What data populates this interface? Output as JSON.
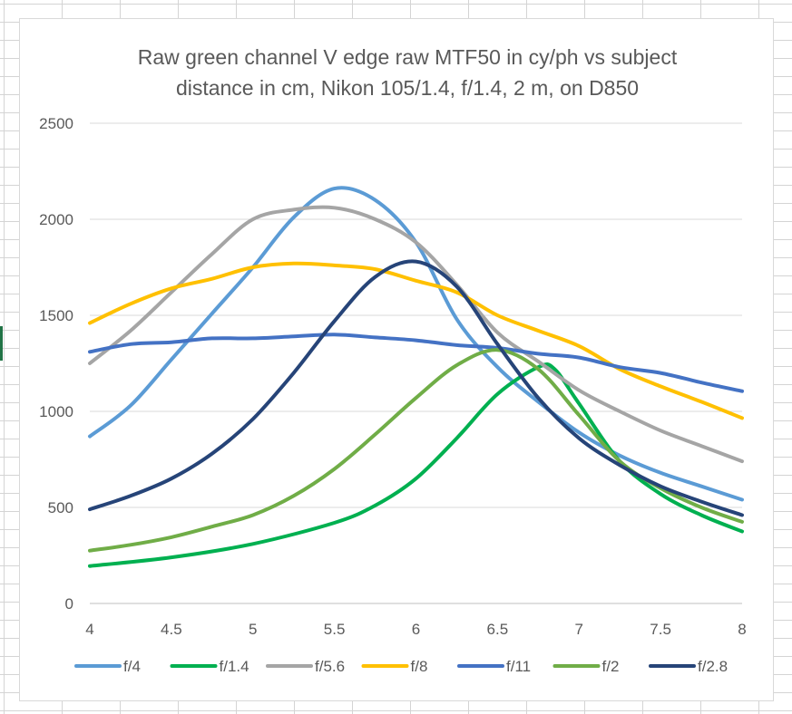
{
  "chart_data": {
    "type": "line",
    "title_lines": [
      "Raw green channel V edge raw MTF50 in cy/ph vs subject",
      "distance in cm, Nikon 105/1.4, f/1.4, 2 m, on D850"
    ],
    "xlabel": "",
    "ylabel": "",
    "xlim": [
      4,
      8
    ],
    "ylim": [
      0,
      2500
    ],
    "x_ticks": [
      "4",
      "4.5",
      "5",
      "5.5",
      "6",
      "6.5",
      "7",
      "7.5",
      "8"
    ],
    "y_ticks": [
      "0",
      "500",
      "1000",
      "1500",
      "2000",
      "2500"
    ],
    "grid": true,
    "legend_position": "bottom",
    "series": [
      {
        "name": "f/4",
        "color": "#5b9bd5",
        "points": [
          [
            4,
            870
          ],
          [
            4.25,
            1030
          ],
          [
            4.5,
            1270
          ],
          [
            4.75,
            1510
          ],
          [
            5,
            1750
          ],
          [
            5.25,
            2010
          ],
          [
            5.5,
            2160
          ],
          [
            5.75,
            2100
          ],
          [
            6,
            1880
          ],
          [
            6.25,
            1480
          ],
          [
            6.5,
            1230
          ],
          [
            6.75,
            1050
          ],
          [
            7,
            890
          ],
          [
            7.25,
            770
          ],
          [
            7.5,
            680
          ],
          [
            7.75,
            610
          ],
          [
            8,
            540
          ]
        ]
      },
      {
        "name": "f/1.4",
        "color": "#00b050",
        "points": [
          [
            4,
            195
          ],
          [
            4.5,
            240
          ],
          [
            5,
            310
          ],
          [
            5.5,
            420
          ],
          [
            5.75,
            510
          ],
          [
            6,
            650
          ],
          [
            6.25,
            860
          ],
          [
            6.5,
            1090
          ],
          [
            6.75,
            1230
          ],
          [
            6.85,
            1220
          ],
          [
            7,
            1040
          ],
          [
            7.25,
            740
          ],
          [
            7.5,
            570
          ],
          [
            7.75,
            460
          ],
          [
            8,
            375
          ]
        ]
      },
      {
        "name": "f/5.6",
        "color": "#a5a5a5",
        "points": [
          [
            4,
            1250
          ],
          [
            4.25,
            1420
          ],
          [
            4.5,
            1620
          ],
          [
            4.75,
            1820
          ],
          [
            5,
            2000
          ],
          [
            5.25,
            2050
          ],
          [
            5.5,
            2060
          ],
          [
            5.75,
            2000
          ],
          [
            6,
            1880
          ],
          [
            6.25,
            1660
          ],
          [
            6.5,
            1410
          ],
          [
            6.75,
            1260
          ],
          [
            7,
            1110
          ],
          [
            7.25,
            1000
          ],
          [
            7.5,
            900
          ],
          [
            7.75,
            820
          ],
          [
            8,
            740
          ]
        ]
      },
      {
        "name": "f/8",
        "color": "#ffc000",
        "points": [
          [
            4,
            1460
          ],
          [
            4.25,
            1560
          ],
          [
            4.5,
            1640
          ],
          [
            4.75,
            1690
          ],
          [
            5,
            1750
          ],
          [
            5.25,
            1770
          ],
          [
            5.5,
            1760
          ],
          [
            5.75,
            1740
          ],
          [
            6,
            1680
          ],
          [
            6.25,
            1620
          ],
          [
            6.5,
            1500
          ],
          [
            6.75,
            1420
          ],
          [
            7,
            1340
          ],
          [
            7.25,
            1220
          ],
          [
            7.5,
            1130
          ],
          [
            7.75,
            1050
          ],
          [
            8,
            965
          ]
        ]
      },
      {
        "name": "f/11",
        "color": "#4472c4",
        "points": [
          [
            4,
            1310
          ],
          [
            4.25,
            1350
          ],
          [
            4.5,
            1360
          ],
          [
            4.75,
            1380
          ],
          [
            5,
            1380
          ],
          [
            5.25,
            1390
          ],
          [
            5.5,
            1400
          ],
          [
            5.75,
            1385
          ],
          [
            6,
            1370
          ],
          [
            6.25,
            1345
          ],
          [
            6.5,
            1330
          ],
          [
            6.75,
            1300
          ],
          [
            7,
            1280
          ],
          [
            7.25,
            1230
          ],
          [
            7.5,
            1200
          ],
          [
            7.75,
            1150
          ],
          [
            8,
            1105
          ]
        ]
      },
      {
        "name": "f/2",
        "color": "#70ad47",
        "points": [
          [
            4,
            275
          ],
          [
            4.25,
            305
          ],
          [
            4.5,
            345
          ],
          [
            4.75,
            400
          ],
          [
            5,
            460
          ],
          [
            5.25,
            560
          ],
          [
            5.5,
            700
          ],
          [
            5.75,
            880
          ],
          [
            6,
            1070
          ],
          [
            6.25,
            1240
          ],
          [
            6.5,
            1320
          ],
          [
            6.75,
            1220
          ],
          [
            7,
            980
          ],
          [
            7.25,
            740
          ],
          [
            7.5,
            600
          ],
          [
            7.75,
            500
          ],
          [
            8,
            425
          ]
        ]
      },
      {
        "name": "f/2.8",
        "color": "#264478",
        "points": [
          [
            4,
            490
          ],
          [
            4.25,
            560
          ],
          [
            4.5,
            650
          ],
          [
            4.75,
            780
          ],
          [
            5,
            960
          ],
          [
            5.25,
            1200
          ],
          [
            5.5,
            1470
          ],
          [
            5.75,
            1700
          ],
          [
            6,
            1780
          ],
          [
            6.25,
            1650
          ],
          [
            6.5,
            1350
          ],
          [
            6.75,
            1070
          ],
          [
            7,
            860
          ],
          [
            7.25,
            720
          ],
          [
            7.5,
            610
          ],
          [
            7.75,
            530
          ],
          [
            8,
            460
          ]
        ]
      }
    ]
  }
}
